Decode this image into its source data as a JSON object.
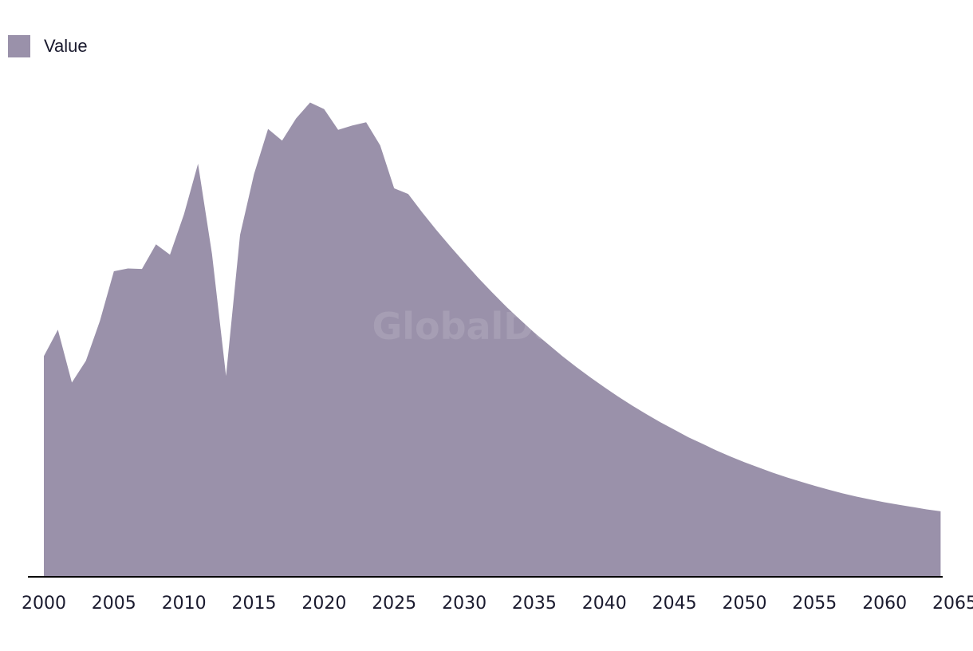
{
  "chart_data": {
    "type": "area",
    "title": "",
    "xlabel": "",
    "ylabel": "",
    "legend": {
      "position": "top-left",
      "entries": [
        "Value"
      ]
    },
    "grid": false,
    "watermark": "GlobalData",
    "xlim": [
      2000,
      2065
    ],
    "x_ticks": [
      2000,
      2005,
      2010,
      2015,
      2020,
      2025,
      2030,
      2035,
      2040,
      2045,
      2050,
      2055,
      2060,
      2065
    ],
    "ylim": [
      0,
      100
    ],
    "series": [
      {
        "name": "Value",
        "color": "#9a91aa",
        "x": [
          2000,
          2001,
          2002,
          2003,
          2004,
          2005,
          2006,
          2007,
          2008,
          2009,
          2010,
          2011,
          2012,
          2013,
          2014,
          2015,
          2016,
          2017,
          2018,
          2019,
          2020,
          2021,
          2022,
          2023,
          2024,
          2025,
          2026,
          2027,
          2028,
          2029,
          2030,
          2031,
          2032,
          2033,
          2034,
          2035,
          2036,
          2037,
          2038,
          2039,
          2040,
          2041,
          2042,
          2043,
          2044,
          2045,
          2046,
          2047,
          2048,
          2049,
          2050,
          2051,
          2052,
          2053,
          2054,
          2055,
          2056,
          2057,
          2058,
          2059,
          2060,
          2061,
          2062,
          2063,
          2064
        ],
        "values": [
          46.8,
          52.4,
          41.2,
          45.8,
          54.3,
          64.8,
          65.4,
          65.3,
          70.5,
          68.3,
          76.9,
          87.6,
          68.5,
          42.6,
          72.5,
          85.4,
          95.0,
          92.5,
          97.2,
          100.6,
          99.2,
          94.8,
          95.7,
          96.4,
          91.5,
          82.4,
          81.2,
          77.3,
          73.6,
          70.1,
          66.7,
          63.4,
          60.3,
          57.3,
          54.5,
          51.8,
          49.3,
          46.8,
          44.5,
          42.3,
          40.2,
          38.2,
          36.3,
          34.5,
          32.8,
          31.2,
          29.6,
          28.2,
          26.8,
          25.5,
          24.3,
          23.2,
          22.1,
          21.1,
          20.2,
          19.3,
          18.5,
          17.7,
          17.0,
          16.4,
          15.8,
          15.3,
          14.8,
          14.3,
          13.9
        ]
      }
    ]
  }
}
